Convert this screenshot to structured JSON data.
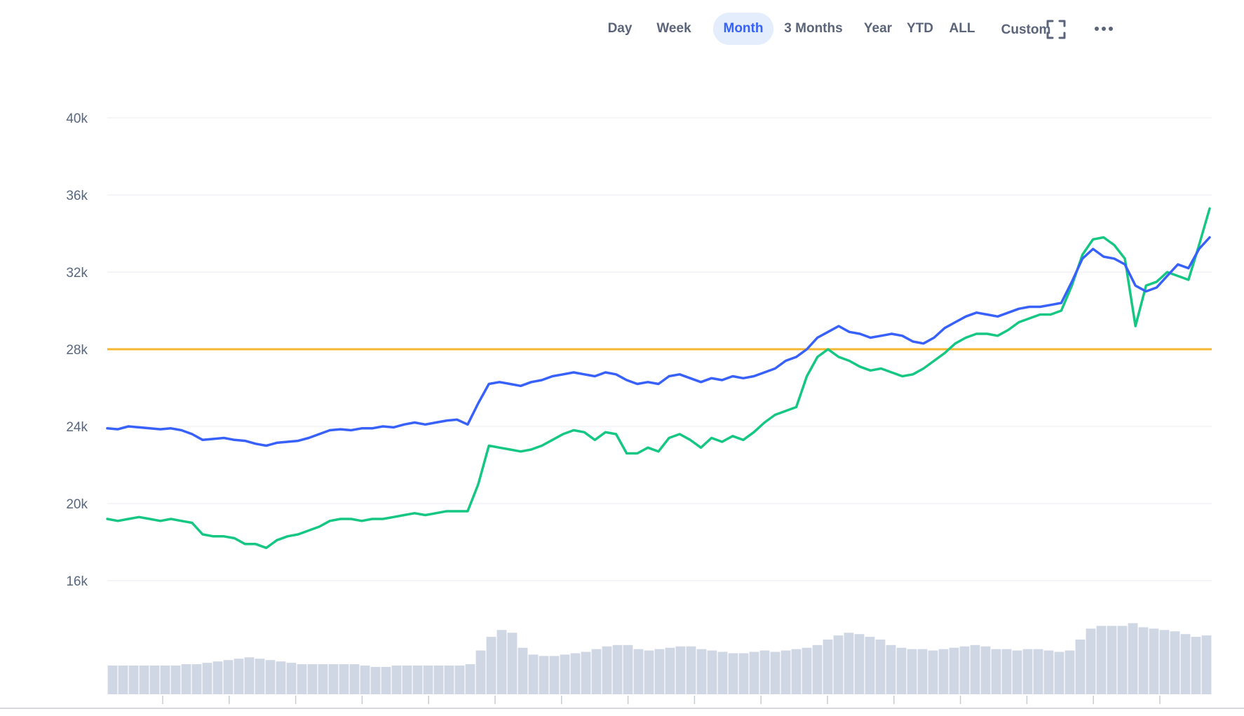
{
  "toolbar": {
    "ranges": [
      "Day",
      "Week",
      "Month",
      "3 Months",
      "Year",
      "YTD",
      "ALL",
      "Custom"
    ],
    "active_range": "Month",
    "fullscreen_icon": "fullscreen-icon",
    "more_icon": "more-horizontal-icon"
  },
  "colors": {
    "blue_series": "#3861fb",
    "green_series": "#16c784",
    "reference_line": "#f7b731",
    "volume_bars": "#cfd6e4",
    "grid": "#eff2f5",
    "axis_text": "#58667e",
    "active_bg": "#e3edfc"
  },
  "chart_data": {
    "type": "line",
    "title": "",
    "xlabel": "",
    "ylabel": "",
    "y_tick_labels": [
      "40k",
      "36k",
      "32k",
      "28k",
      "24k",
      "20k",
      "16k"
    ],
    "y_ticks": [
      40000,
      36000,
      32000,
      28000,
      24000,
      20000,
      16000
    ],
    "ylim": [
      16000,
      40000
    ],
    "grid": true,
    "x_tick_count": 16,
    "reference_line": {
      "value": 28000
    },
    "series": [
      {
        "values": [
          23900,
          23850,
          24000,
          23950,
          23900,
          23850,
          23900,
          23800,
          23600,
          23300,
          23350,
          23400,
          23300,
          23250,
          23100,
          23000,
          23150,
          23200,
          23250,
          23400,
          23600,
          23800,
          23850,
          23800,
          23900,
          23900,
          24000,
          23950,
          24100,
          24200,
          24100,
          24200,
          24300,
          24350,
          24100,
          25200,
          26200,
          26300,
          26200,
          26100,
          26300,
          26400,
          26600,
          26700,
          26800,
          26700,
          26600,
          26800,
          26700,
          26400,
          26200,
          26300,
          26200,
          26600,
          26700,
          26500,
          26300,
          26500,
          26400,
          26600,
          26500,
          26600,
          26800,
          27000,
          27400,
          27600,
          28000,
          28600,
          28900,
          29200,
          28900,
          28800,
          28600,
          28700,
          28800,
          28700,
          28400,
          28300,
          28600,
          29100,
          29400,
          29700,
          29900,
          29800,
          29700,
          29900,
          30100,
          30200,
          30200,
          30300,
          30400,
          31500,
          32700,
          33200,
          32800,
          32700,
          32400,
          31300,
          31000,
          31200,
          31800,
          32400,
          32200,
          33200,
          33800
        ]
      },
      {
        "values": [
          19200,
          19100,
          19200,
          19300,
          19200,
          19100,
          19200,
          19100,
          19000,
          18400,
          18300,
          18300,
          18200,
          17900,
          17900,
          17700,
          18100,
          18300,
          18400,
          18600,
          18800,
          19100,
          19200,
          19200,
          19100,
          19200,
          19200,
          19300,
          19400,
          19500,
          19400,
          19500,
          19600,
          19600,
          19600,
          21000,
          23000,
          22900,
          22800,
          22700,
          22800,
          23000,
          23300,
          23600,
          23800,
          23700,
          23300,
          23700,
          23600,
          22600,
          22600,
          22900,
          22700,
          23400,
          23600,
          23300,
          22900,
          23400,
          23200,
          23500,
          23300,
          23700,
          24200,
          24600,
          24800,
          25000,
          26600,
          27600,
          28000,
          27600,
          27400,
          27100,
          26900,
          27000,
          26800,
          26600,
          26700,
          27000,
          27400,
          27800,
          28300,
          28600,
          28800,
          28800,
          28700,
          29000,
          29400,
          29600,
          29800,
          29800,
          30000,
          31300,
          32900,
          33700,
          33800,
          33400,
          32700,
          29200,
          31300,
          31500,
          32000,
          31800,
          31600,
          33400,
          35300
        ]
      }
    ],
    "volume": [
      21,
      21,
      21,
      21,
      21,
      21,
      21,
      22,
      22,
      23,
      24,
      25,
      26,
      27,
      26,
      25,
      24,
      23,
      22,
      22,
      22,
      22,
      22,
      22,
      21,
      20,
      20,
      21,
      21,
      21,
      21,
      21,
      21,
      21,
      22,
      32,
      42,
      47,
      45,
      34,
      29,
      28,
      28,
      29,
      30,
      31,
      33,
      35,
      36,
      36,
      33,
      32,
      33,
      34,
      35,
      35,
      33,
      32,
      31,
      30,
      30,
      31,
      32,
      31,
      32,
      33,
      34,
      36,
      40,
      43,
      45,
      44,
      42,
      40,
      36,
      34,
      33,
      33,
      32,
      33,
      34,
      35,
      36,
      35,
      33,
      33,
      32,
      33,
      33,
      32,
      31,
      32,
      40,
      48,
      50,
      50,
      50,
      52,
      49,
      48,
      47,
      46,
      44,
      42,
      43
    ]
  }
}
